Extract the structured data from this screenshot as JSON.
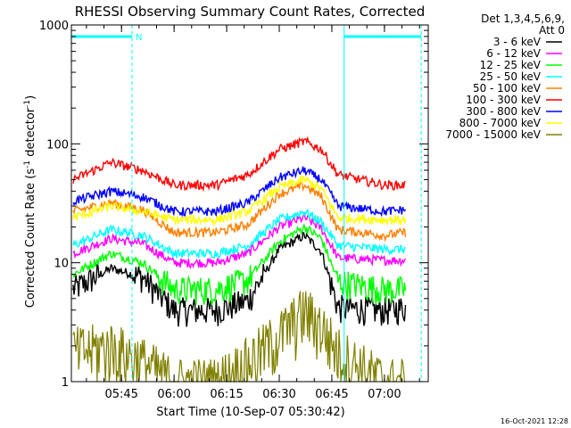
{
  "chart_data": {
    "type": "line",
    "title": "RHESSI Observing Summary Count Rates, Corrected",
    "xlabel": "Start Time (10-Sep-07 05:30:42)",
    "ylabel_main": "Corrected Count Rate (s",
    "ylabel_sup1": "-1",
    "ylabel_mid": " detector",
    "ylabel_sup2": "-1",
    "ylabel_end": ")",
    "yscale": "log",
    "ylim": [
      1,
      1000
    ],
    "xlim": [
      "05:30:42",
      "07:12:30"
    ],
    "x_ticks": [
      "05:45",
      "06:00",
      "06:15",
      "06:30",
      "06:45",
      "07:00"
    ],
    "y_ticks": [
      "1",
      "10",
      "100",
      "1000"
    ],
    "legend": {
      "placement": "right",
      "header1": "Det 1,3,4,5,6,9,",
      "header2": "Att 0"
    },
    "annotation": "N",
    "footer_date": "16-Oct-2021 12:28",
    "night_intervals": [
      [
        "05:30:42",
        "05:48:00"
      ],
      [
        "06:48:30",
        "07:10:30"
      ]
    ],
    "series": [
      {
        "name": "3 - 6 keV",
        "color": "#000000",
        "values": [
          [
            5.52,
            6.0
          ],
          [
            5.7,
            9.0
          ],
          [
            5.85,
            7.6
          ],
          [
            6.0,
            4.0
          ],
          [
            6.2,
            4.0
          ],
          [
            6.35,
            4.8
          ],
          [
            6.5,
            13.0
          ],
          [
            6.62,
            17.0
          ],
          [
            6.7,
            12.5
          ],
          [
            6.78,
            4.2
          ],
          [
            7.0,
            4.0
          ],
          [
            7.1,
            4.2
          ]
        ]
      },
      {
        "name": "6 - 12 keV",
        "color": "#ff00ff",
        "values": [
          [
            5.52,
            12.0
          ],
          [
            5.7,
            16.0
          ],
          [
            5.85,
            14.5
          ],
          [
            6.0,
            10.0
          ],
          [
            6.2,
            10.0
          ],
          [
            6.35,
            12.0
          ],
          [
            6.5,
            20.0
          ],
          [
            6.62,
            24.0
          ],
          [
            6.7,
            19.5
          ],
          [
            6.78,
            11.0
          ],
          [
            7.0,
            10.5
          ],
          [
            7.1,
            10.5
          ]
        ]
      },
      {
        "name": "12 - 25 keV",
        "color": "#00ff00",
        "values": [
          [
            5.52,
            8.0
          ],
          [
            5.7,
            12.0
          ],
          [
            5.85,
            10.0
          ],
          [
            6.0,
            6.0
          ],
          [
            6.2,
            6.0
          ],
          [
            6.35,
            7.2
          ],
          [
            6.5,
            15.0
          ],
          [
            6.62,
            20.0
          ],
          [
            6.7,
            16.0
          ],
          [
            6.78,
            7.0
          ],
          [
            7.0,
            6.0
          ],
          [
            7.1,
            6.0
          ]
        ]
      },
      {
        "name": "25 - 50 keV",
        "color": "#00ffff",
        "values": [
          [
            5.52,
            14.0
          ],
          [
            5.7,
            19.0
          ],
          [
            5.85,
            17.0
          ],
          [
            6.0,
            12.0
          ],
          [
            6.2,
            12.0
          ],
          [
            6.35,
            14.0
          ],
          [
            6.5,
            23.0
          ],
          [
            6.62,
            27.0
          ],
          [
            6.7,
            22.0
          ],
          [
            6.78,
            14.0
          ],
          [
            7.0,
            13.0
          ],
          [
            7.1,
            13.0
          ]
        ]
      },
      {
        "name": "50 - 100 keV",
        "color": "#ff8000",
        "values": [
          [
            5.52,
            27.0
          ],
          [
            5.7,
            32.0
          ],
          [
            5.85,
            28.0
          ],
          [
            6.0,
            18.0
          ],
          [
            6.2,
            18.0
          ],
          [
            6.35,
            21.0
          ],
          [
            6.5,
            38.0
          ],
          [
            6.62,
            45.0
          ],
          [
            6.7,
            36.0
          ],
          [
            6.78,
            19.0
          ],
          [
            7.0,
            17.0
          ],
          [
            7.1,
            18.0
          ]
        ]
      },
      {
        "name": "100 - 300 keV",
        "color": "#ff0000",
        "values": [
          [
            5.52,
            50.0
          ],
          [
            5.7,
            70.0
          ],
          [
            5.85,
            60.0
          ],
          [
            6.0,
            45.0
          ],
          [
            6.2,
            45.0
          ],
          [
            6.35,
            55.0
          ],
          [
            6.5,
            90.0
          ],
          [
            6.62,
            105.0
          ],
          [
            6.7,
            90.0
          ],
          [
            6.78,
            55.0
          ],
          [
            7.0,
            45.0
          ],
          [
            7.1,
            45.0
          ]
        ]
      },
      {
        "name": "300 - 800 keV",
        "color": "#0000ff",
        "values": [
          [
            5.52,
            33.0
          ],
          [
            5.7,
            40.0
          ],
          [
            5.85,
            36.0
          ],
          [
            6.0,
            27.0
          ],
          [
            6.2,
            27.0
          ],
          [
            6.35,
            32.0
          ],
          [
            6.5,
            52.0
          ],
          [
            6.62,
            60.0
          ],
          [
            6.7,
            50.0
          ],
          [
            6.78,
            30.0
          ],
          [
            7.0,
            27.0
          ],
          [
            7.1,
            28.0
          ]
        ]
      },
      {
        "name": "800 - 7000 keV",
        "color": "#ffff00",
        "values": [
          [
            5.52,
            24.0
          ],
          [
            5.7,
            30.0
          ],
          [
            5.85,
            27.0
          ],
          [
            6.0,
            23.0
          ],
          [
            6.2,
            23.0
          ],
          [
            6.35,
            27.0
          ],
          [
            6.5,
            43.0
          ],
          [
            6.62,
            50.0
          ],
          [
            6.7,
            42.0
          ],
          [
            6.78,
            24.0
          ],
          [
            7.0,
            23.0
          ],
          [
            7.1,
            23.0
          ]
        ]
      },
      {
        "name": "7000 - 15000 keV",
        "color": "#808000",
        "values": [
          [
            5.52,
            1.8
          ],
          [
            5.7,
            2.0
          ],
          [
            5.85,
            1.5
          ],
          [
            6.0,
            1.0
          ],
          [
            6.2,
            1.0
          ],
          [
            6.35,
            1.5
          ],
          [
            6.5,
            2.5
          ],
          [
            6.62,
            4.0
          ],
          [
            6.7,
            3.0
          ],
          [
            6.78,
            1.8
          ],
          [
            7.0,
            1.0
          ],
          [
            7.1,
            1.0
          ]
        ]
      }
    ]
  }
}
